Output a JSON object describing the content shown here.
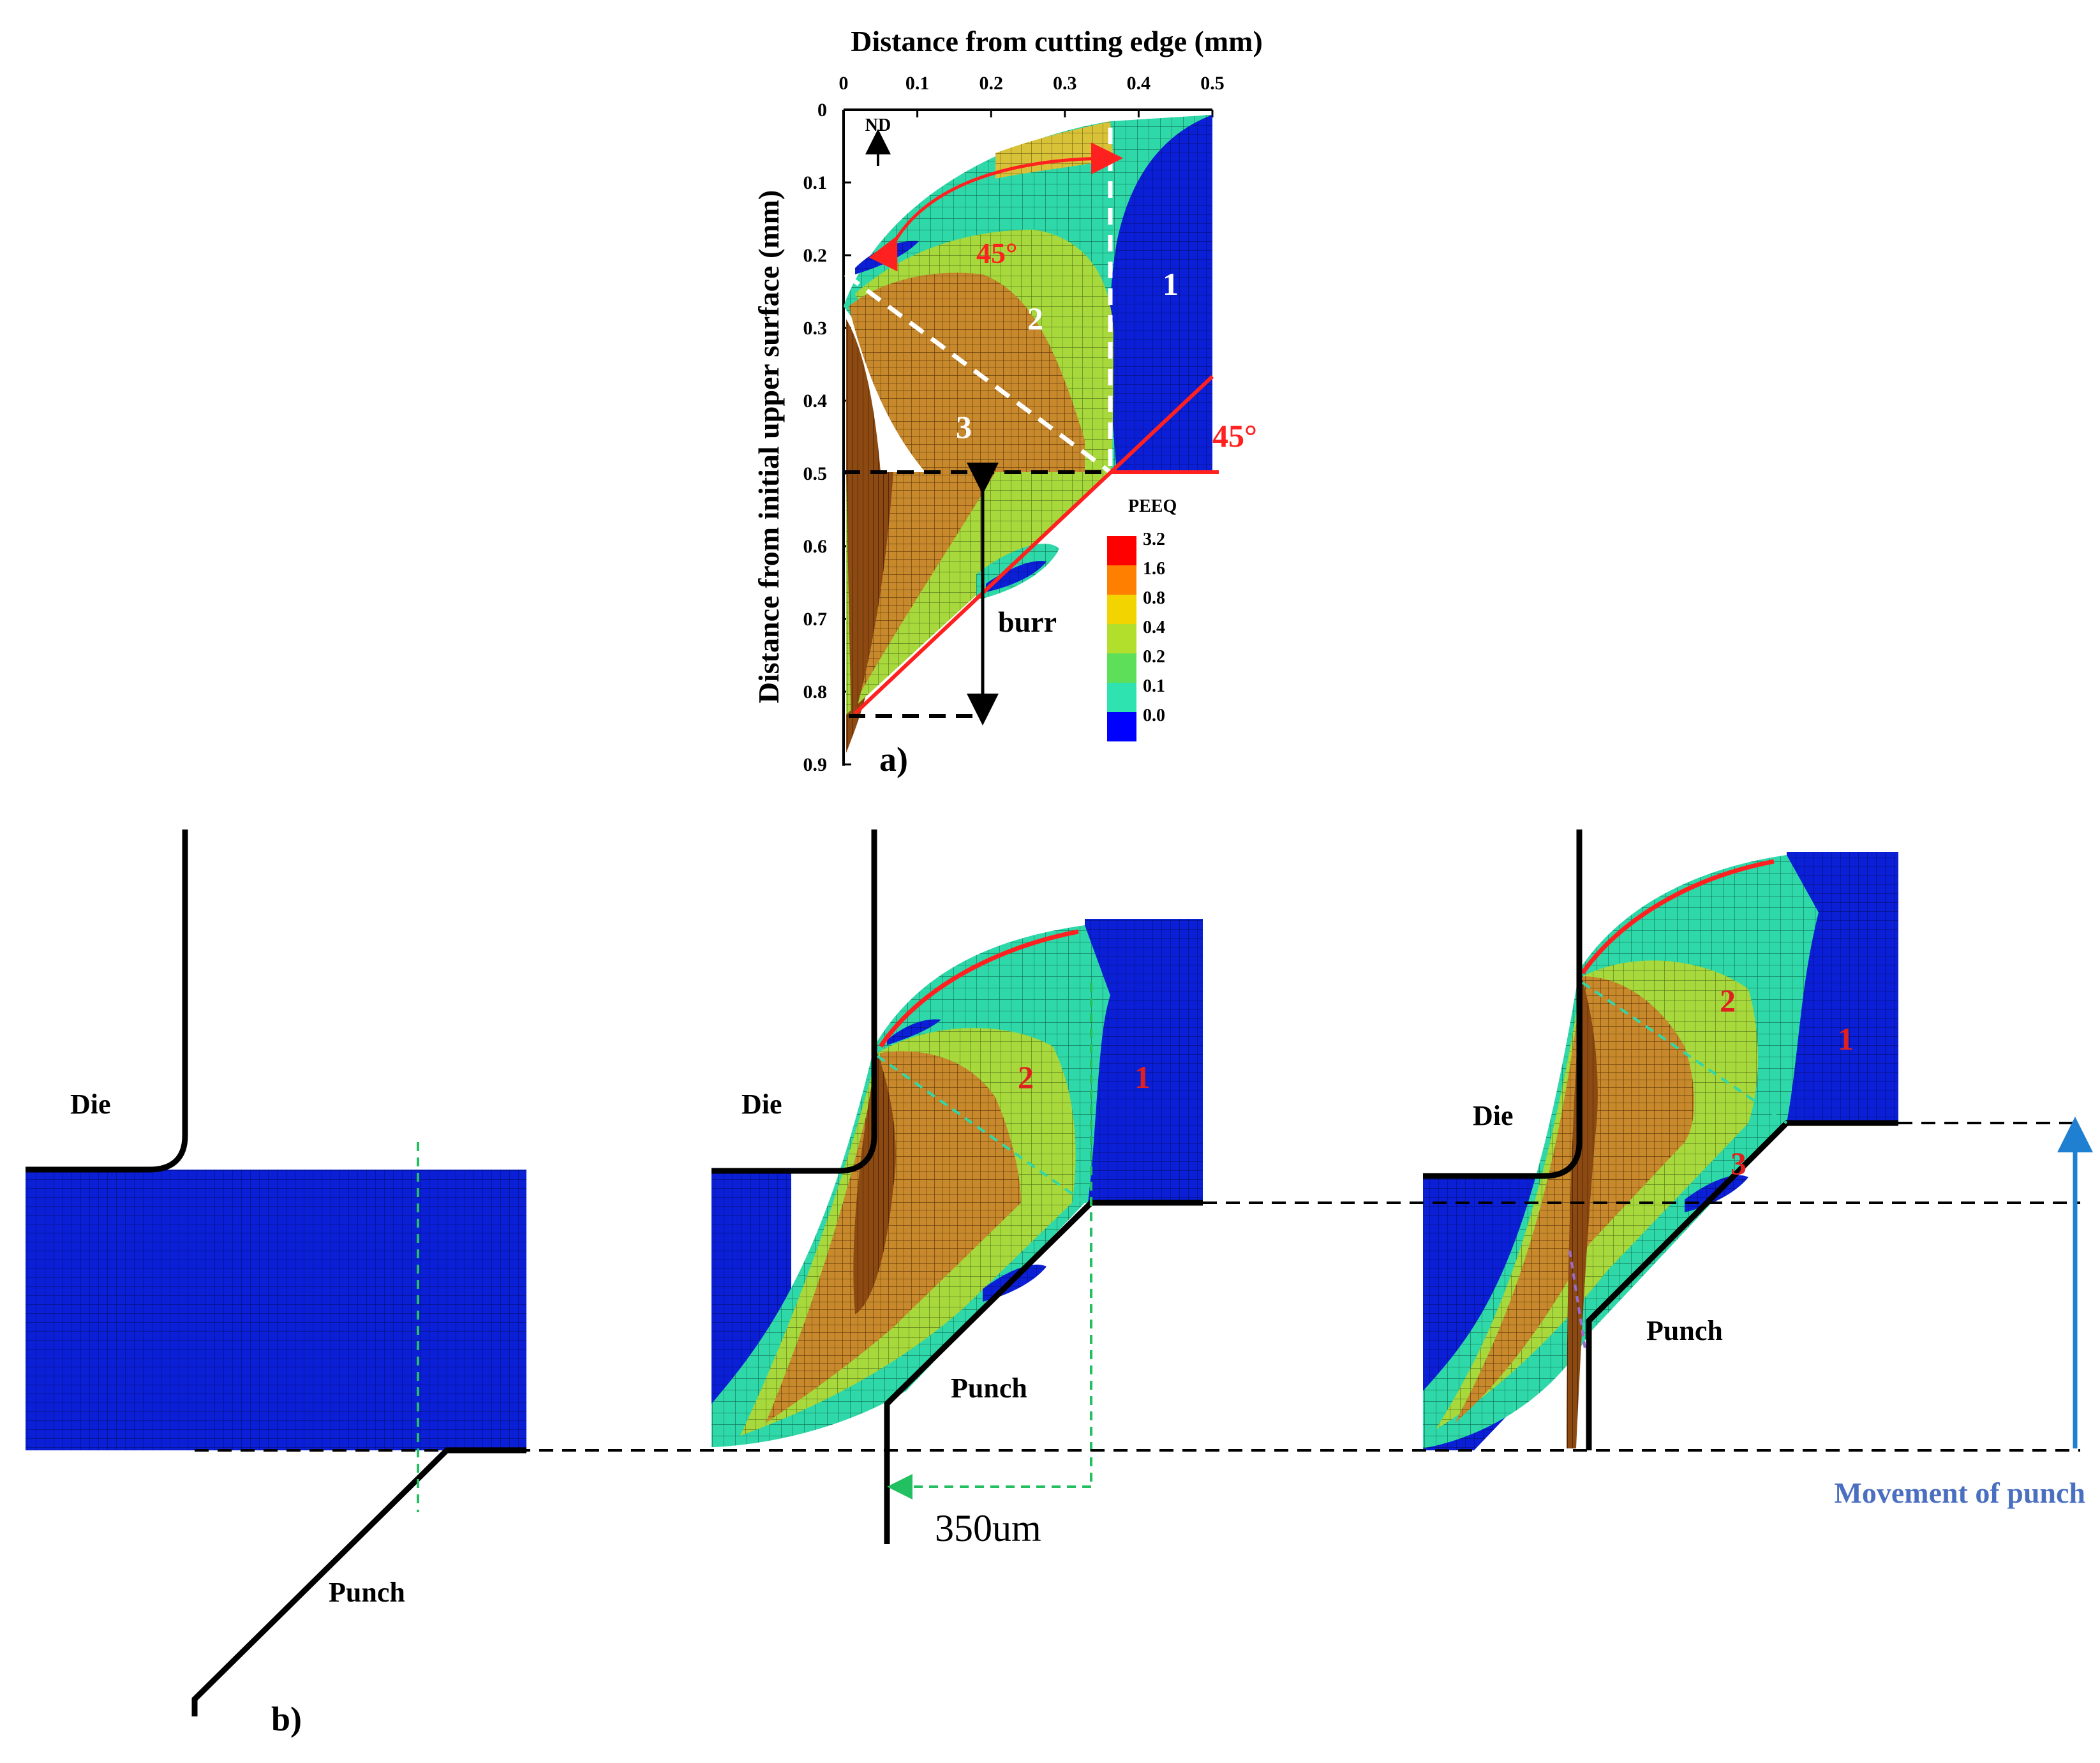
{
  "panel_a": {
    "label": "a)",
    "x_axis_title": "Distance from cutting edge (mm)",
    "y_axis_title": "Distance from initial upper surface (mm)",
    "x_ticks": [
      "0",
      "0.1",
      "0.2",
      "0.3",
      "0.4",
      "0.5"
    ],
    "y_ticks": [
      "0",
      "0.1",
      "0.2",
      "0.3",
      "0.4",
      "0.5",
      "0.6",
      "0.7",
      "0.8",
      "0.9"
    ],
    "nd_label": "ND",
    "angle_upper": "45°",
    "angle_right": "45°",
    "burr_label": "burr",
    "zones": [
      "1",
      "2",
      "3"
    ],
    "legend": {
      "title": "PEEQ",
      "levels": [
        {
          "label": "3.2",
          "color": "#ff0000"
        },
        {
          "label": "1.6",
          "color": "#ff7f00"
        },
        {
          "label": "0.8",
          "color": "#f2d400"
        },
        {
          "label": "0.4",
          "color": "#b2df2c"
        },
        {
          "label": "0.2",
          "color": "#5ddf5a"
        },
        {
          "label": "0.1",
          "color": "#2fe3b0"
        },
        {
          "label": "0.0",
          "color": "#0000ff"
        }
      ]
    }
  },
  "panel_b": {
    "label": "b)",
    "die_label": "Die",
    "punch_label": "Punch",
    "offset_label": "350um",
    "movement_label": "Movement of punch",
    "zones_stage2": [
      "2",
      "1"
    ],
    "zones_stage3": [
      "2",
      "1",
      "3"
    ]
  },
  "colors": {
    "mesh_blue": "#0a1fd6",
    "cyan": "#2fe3b0",
    "green": "#9dd63a",
    "orange": "#c8892a",
    "brown": "#8a4a12",
    "red": "#ff2020",
    "arrow_blue": "#1f7fd0",
    "movement_text": "#4a6fc0",
    "dashed_green": "#22c060"
  }
}
